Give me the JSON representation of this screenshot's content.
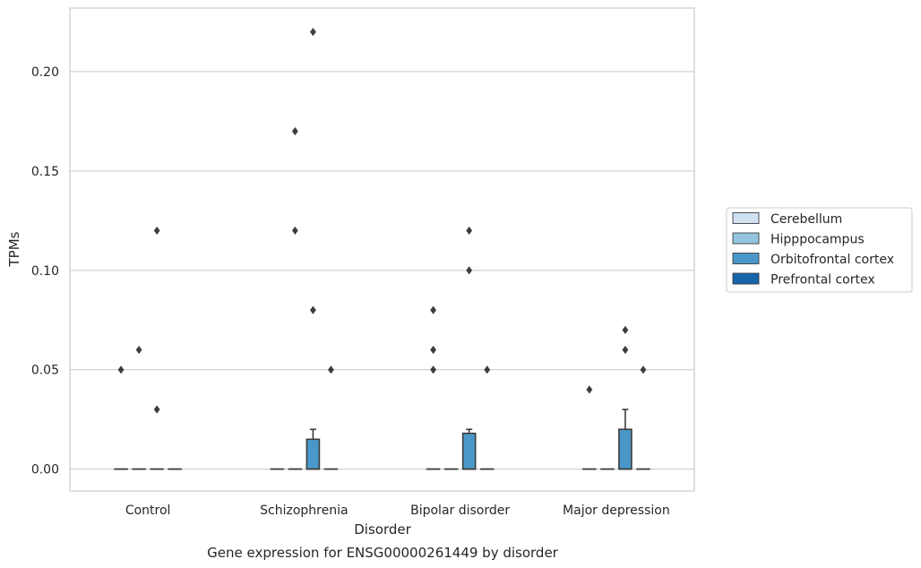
{
  "chart_data": {
    "type": "box",
    "title": "",
    "caption": "Gene expression for ENSG00000261449 by disorder",
    "xlabel": "Disorder",
    "ylabel": "TPMs",
    "ylim": [
      -0.011,
      0.232
    ],
    "yticks": [
      0.0,
      0.05,
      0.1,
      0.15,
      0.2
    ],
    "ytick_labels": [
      "0.00",
      "0.05",
      "0.10",
      "0.15",
      "0.20"
    ],
    "grid": "horizontal",
    "legend_position": "right",
    "categories": [
      "Control",
      "Schizophrenia",
      "Bipolar disorder",
      "Major depression"
    ],
    "series": [
      {
        "name": "Cerebellum",
        "color": "#d0e1f2",
        "boxes": [
          {
            "q1": 0,
            "median": 0,
            "q3": 0,
            "whisker_low": 0,
            "whisker_high": 0,
            "outliers": [
              0.05
            ]
          },
          {
            "q1": 0,
            "median": 0,
            "q3": 0,
            "whisker_low": 0,
            "whisker_high": 0,
            "outliers": []
          },
          {
            "q1": 0,
            "median": 0,
            "q3": 0,
            "whisker_low": 0,
            "whisker_high": 0,
            "outliers": [
              0.05,
              0.06,
              0.08
            ]
          },
          {
            "q1": 0,
            "median": 0,
            "q3": 0,
            "whisker_low": 0,
            "whisker_high": 0,
            "outliers": [
              0.04
            ]
          }
        ]
      },
      {
        "name": "Hipppocampus",
        "color": "#94c4df",
        "boxes": [
          {
            "q1": 0,
            "median": 0,
            "q3": 0,
            "whisker_low": 0,
            "whisker_high": 0,
            "outliers": [
              0.06
            ]
          },
          {
            "q1": 0,
            "median": 0,
            "q3": 0,
            "whisker_low": 0,
            "whisker_high": 0,
            "outliers": [
              0.12,
              0.17
            ]
          },
          {
            "q1": 0,
            "median": 0,
            "q3": 0,
            "whisker_low": 0,
            "whisker_high": 0,
            "outliers": []
          },
          {
            "q1": 0,
            "median": 0,
            "q3": 0,
            "whisker_low": 0,
            "whisker_high": 0,
            "outliers": []
          }
        ]
      },
      {
        "name": "Orbitofrontal cortex",
        "color": "#4a98c9",
        "boxes": [
          {
            "q1": 0,
            "median": 0,
            "q3": 0,
            "whisker_low": 0,
            "whisker_high": 0,
            "outliers": [
              0.03,
              0.12
            ]
          },
          {
            "q1": 0,
            "median": 0,
            "q3": 0.015,
            "whisker_low": 0,
            "whisker_high": 0.02,
            "outliers": [
              0.08,
              0.22
            ]
          },
          {
            "q1": 0,
            "median": 0,
            "q3": 0.018,
            "whisker_low": 0,
            "whisker_high": 0.02,
            "outliers": [
              0.1,
              0.12
            ]
          },
          {
            "q1": 0,
            "median": 0,
            "q3": 0.02,
            "whisker_low": 0,
            "whisker_high": 0.03,
            "outliers": [
              0.06,
              0.07
            ]
          }
        ]
      },
      {
        "name": "Prefrontal cortex",
        "color": "#1764ab",
        "boxes": [
          {
            "q1": 0,
            "median": 0,
            "q3": 0,
            "whisker_low": 0,
            "whisker_high": 0,
            "outliers": []
          },
          {
            "q1": 0,
            "median": 0,
            "q3": 0,
            "whisker_low": 0,
            "whisker_high": 0,
            "outliers": [
              0.05
            ]
          },
          {
            "q1": 0,
            "median": 0,
            "q3": 0,
            "whisker_low": 0,
            "whisker_high": 0,
            "outliers": [
              0.05
            ]
          },
          {
            "q1": 0,
            "median": 0,
            "q3": 0,
            "whisker_low": 0,
            "whisker_high": 0,
            "outliers": [
              0.05
            ]
          }
        ]
      }
    ]
  }
}
